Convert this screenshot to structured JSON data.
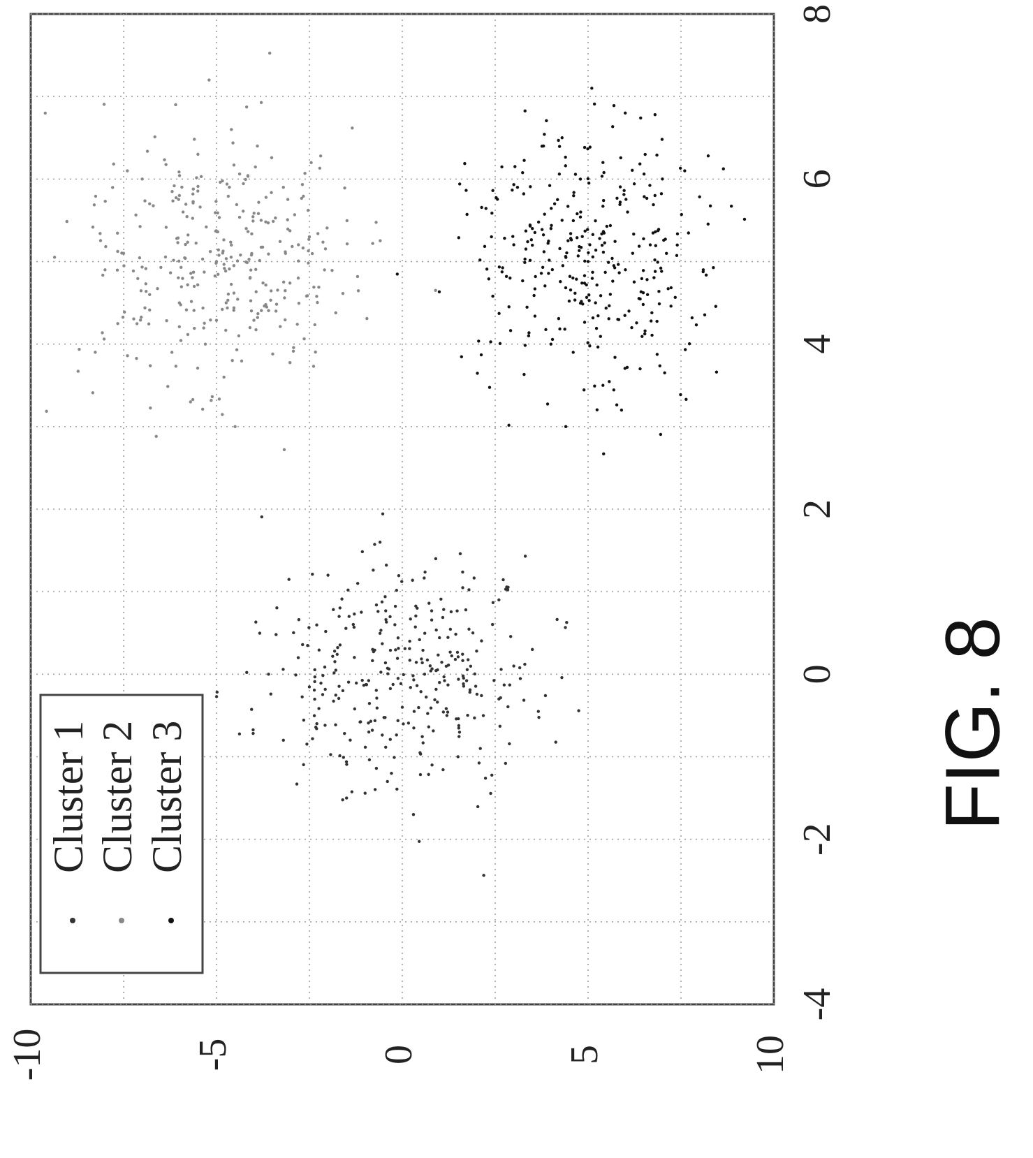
{
  "figure_label": "FIG. 8",
  "chart_data": {
    "type": "scatter",
    "title": "",
    "xlabel": "",
    "ylabel": "",
    "xlim": [
      -4,
      8
    ],
    "ylim": [
      -10,
      10
    ],
    "x_ticks": [
      "-4",
      "-2",
      "0",
      "2",
      "4",
      "6",
      "8"
    ],
    "y_ticks": [
      "-10",
      "-5",
      "0",
      "5",
      "10"
    ],
    "grid": true,
    "legend_position": "top-left",
    "series": [
      {
        "name": "Cluster 1",
        "color": "#333333",
        "center": [
          0,
          0
        ],
        "spread": [
          0.7,
          1.9
        ],
        "points": [
          [
            -0.5,
            1.2
          ],
          [
            0.3,
            -0.8
          ],
          [
            -0.9,
            2.1
          ],
          [
            0.8,
            0.4
          ],
          [
            -0.2,
            -1.6
          ],
          [
            0.5,
            1.9
          ],
          [
            -1.3,
            -0.4
          ],
          [
            1.1,
            -1.2
          ],
          [
            0.0,
            0.6
          ],
          [
            -0.6,
            -2.3
          ],
          [
            0.9,
            2.6
          ],
          [
            -1.0,
            1.5
          ],
          [
            0.2,
            -2.8
          ],
          [
            1.4,
            0.9
          ],
          [
            -0.4,
            0.0
          ],
          [
            0.6,
            -0.2
          ],
          [
            -1.5,
            -1.5
          ],
          [
            0.1,
            3.0
          ],
          [
            -0.8,
            -3.2
          ],
          [
            1.2,
            -2.0
          ],
          [
            -0.1,
            1.0
          ],
          [
            0.4,
            0.2
          ],
          [
            -1.1,
            0.8
          ],
          [
            0.7,
            -1.7
          ],
          [
            -0.3,
            2.6
          ],
          [
            1.6,
            -0.6
          ],
          [
            -1.7,
            0.3
          ],
          [
            0.0,
            -3.6
          ],
          [
            0.3,
            3.5
          ],
          [
            -0.7,
            -0.9
          ]
        ]
      },
      {
        "name": "Cluster 2",
        "color": "#888888",
        "center": [
          5,
          -5
        ],
        "spread": [
          0.8,
          1.8
        ],
        "points": [
          [
            5.0,
            -5.0
          ],
          [
            4.2,
            -4.1
          ],
          [
            5.8,
            -6.0
          ],
          [
            4.6,
            -6.8
          ],
          [
            5.5,
            -3.8
          ],
          [
            6.3,
            -5.5
          ],
          [
            4.0,
            -5.3
          ],
          [
            5.2,
            -4.6
          ],
          [
            4.8,
            -2.8
          ],
          [
            6.0,
            -7.0
          ],
          [
            3.6,
            -4.8
          ],
          [
            5.6,
            -5.9
          ],
          [
            4.4,
            -3.4
          ],
          [
            6.6,
            -4.6
          ],
          [
            5.1,
            -7.5
          ],
          [
            3.9,
            -6.2
          ],
          [
            5.9,
            -3.2
          ],
          [
            4.7,
            -5.6
          ],
          [
            6.9,
            -6.1
          ],
          [
            4.1,
            -4.4
          ],
          [
            5.3,
            -2.5
          ],
          [
            5.7,
            -6.8
          ],
          [
            3.3,
            -5.7
          ],
          [
            6.4,
            -3.9
          ],
          [
            4.9,
            -8.0
          ],
          [
            7.2,
            -5.2
          ],
          [
            4.5,
            -6.0
          ],
          [
            5.4,
            -4.2
          ],
          [
            3.0,
            -4.5
          ],
          [
            6.1,
            -7.4
          ]
        ]
      },
      {
        "name": "Cluster 3",
        "color": "#111111",
        "center": [
          5,
          5
        ],
        "spread": [
          0.8,
          1.8
        ],
        "points": [
          [
            5.0,
            5.0
          ],
          [
            4.3,
            5.8
          ],
          [
            5.7,
            4.1
          ],
          [
            4.6,
            6.6
          ],
          [
            5.4,
            3.5
          ],
          [
            6.2,
            5.4
          ],
          [
            3.9,
            4.6
          ],
          [
            5.1,
            6.2
          ],
          [
            4.8,
            2.9
          ],
          [
            6.0,
            7.0
          ],
          [
            3.5,
            5.4
          ],
          [
            5.6,
            4.8
          ],
          [
            4.1,
            3.4
          ],
          [
            6.5,
            4.3
          ],
          [
            5.2,
            7.4
          ],
          [
            3.7,
            6.4
          ],
          [
            5.9,
            3.1
          ],
          [
            4.5,
            5.2
          ],
          [
            6.8,
            6.0
          ],
          [
            4.0,
            4.0
          ],
          [
            5.3,
            2.4
          ],
          [
            5.8,
            6.8
          ],
          [
            3.2,
            5.9
          ],
          [
            6.4,
            3.8
          ],
          [
            4.9,
            8.1
          ],
          [
            7.1,
            5.1
          ],
          [
            4.4,
            6.1
          ],
          [
            5.5,
            4.3
          ],
          [
            3.0,
            4.4
          ],
          [
            6.1,
            7.6
          ]
        ]
      }
    ]
  }
}
